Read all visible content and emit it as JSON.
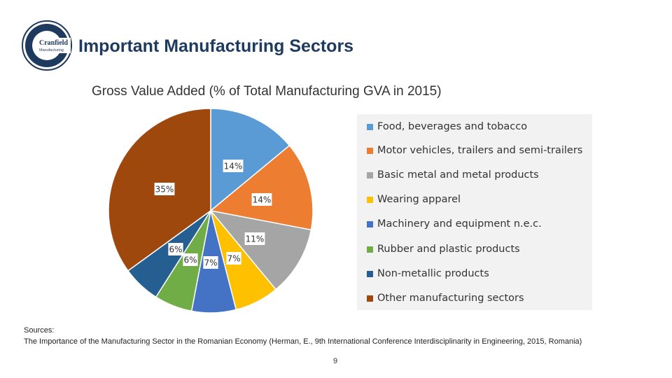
{
  "header": {
    "logo_text_line1": "Cranfield",
    "logo_text_line2": "Manufacturing",
    "title": "Important Manufacturing Sectors"
  },
  "chart_data": {
    "type": "pie",
    "title": "Gross Value Added (% of Total Manufacturing GVA in 2015)",
    "legend_position": "right",
    "slices": [
      {
        "label": "Food, beverages and tobacco",
        "value": 14,
        "display": "14%",
        "color": "#5b9bd5"
      },
      {
        "label": "Motor vehicles, trailers and semi-trailers",
        "value": 14,
        "display": "14%",
        "color": "#ed7d31"
      },
      {
        "label": "Basic metal and metal products",
        "value": 11,
        "display": "11%",
        "color": "#a5a5a5"
      },
      {
        "label": "Wearing apparel",
        "value": 7,
        "display": "7%",
        "color": "#ffc000"
      },
      {
        "label": "Machinery and equipment n.e.c.",
        "value": 7,
        "display": "7%",
        "color": "#4472c4"
      },
      {
        "label": "Rubber and plastic products",
        "value": 6,
        "display": "6%",
        "color": "#70ad47"
      },
      {
        "label": "Non-metallic products",
        "value": 6,
        "display": "6%",
        "color": "#255e91"
      },
      {
        "label": "Other manufacturing sectors",
        "value": 35,
        "display": "35%",
        "color": "#9e480e"
      }
    ]
  },
  "footer": {
    "sources_heading": "Sources:",
    "sources_text": "The Importance of the Manufacturing Sector in the Romanian Economy (Herman, E., 9th International Conference Interdisciplinarity in Engineering, 2015, Romania)",
    "page_number": "9"
  }
}
